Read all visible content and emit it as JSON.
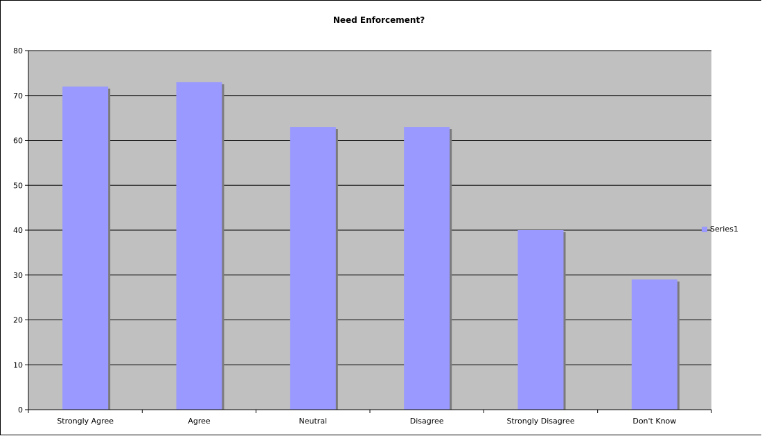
{
  "chart_data": {
    "type": "bar",
    "title": "Need Enforcement?",
    "categories": [
      "Strongly Agree",
      "Agree",
      "Neutral",
      "Disagree",
      "Strongly Disagree",
      "Don't Know"
    ],
    "series": [
      {
        "name": "Series1",
        "values": [
          72,
          73,
          63,
          63,
          40,
          29
        ],
        "color": "#9999ff"
      }
    ],
    "xlabel": "",
    "ylabel": "",
    "ylim": [
      0,
      80
    ],
    "yticks": [
      0,
      10,
      20,
      30,
      40,
      50,
      60,
      70,
      80
    ],
    "grid": true,
    "plot_background": "#c0c0c0",
    "legend_position": "right",
    "bar_shadow_color": "#7a7a7a"
  }
}
